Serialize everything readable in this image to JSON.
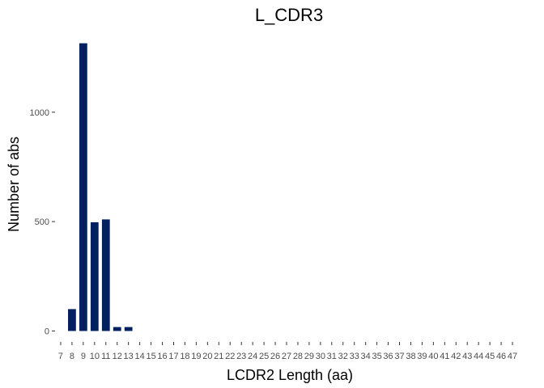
{
  "chart_data": {
    "type": "bar",
    "title": "L_CDR3",
    "xlabel": "LCDR2 Length (aa)",
    "ylabel": "Number of abs",
    "categories": [
      "7",
      "8",
      "9",
      "10",
      "11",
      "12",
      "13",
      "14",
      "15",
      "16",
      "17",
      "18",
      "19",
      "20",
      "21",
      "22",
      "23",
      "24",
      "25",
      "26",
      "27",
      "28",
      "29",
      "30",
      "31",
      "32",
      "33",
      "34",
      "35",
      "36",
      "37",
      "38",
      "39",
      "40",
      "41",
      "42",
      "43",
      "44",
      "45",
      "46",
      "47"
    ],
    "values": [
      0,
      100,
      1315,
      497,
      510,
      18,
      18,
      0,
      0,
      0,
      0,
      0,
      0,
      0,
      0,
      0,
      0,
      0,
      0,
      0,
      0,
      0,
      0,
      0,
      0,
      0,
      0,
      0,
      0,
      0,
      0,
      0,
      0,
      0,
      0,
      0,
      0,
      0,
      0,
      0,
      0
    ],
    "yticks": [
      0,
      500,
      1000
    ],
    "ylim": [
      -50,
      1365
    ],
    "bar_color": "#002060",
    "grid": false,
    "legend": "none"
  }
}
